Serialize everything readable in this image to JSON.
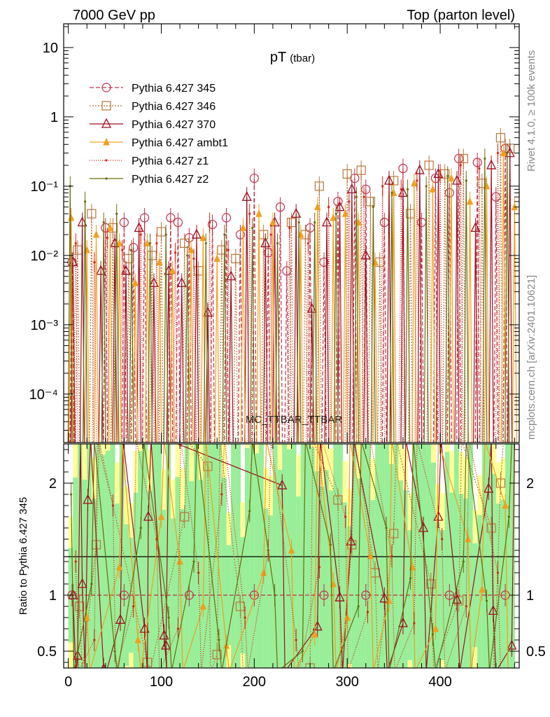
{
  "header": {
    "left": "7000 GeV pp",
    "right": "Top (parton level)"
  },
  "side": {
    "rivet": "Rivet 4.1.0, ≥ 100k events",
    "mcplots": "mcplots.cern.ch [arXiv:2401.10621]"
  },
  "watermark": "MC_TTBAR_TTBAR",
  "chart_data": [
    {
      "type": "line",
      "title": "pT",
      "title_sub": "(tbar)",
      "xlabel": "",
      "ylabel": "",
      "yscale": "log",
      "xlim": [
        -5,
        485
      ],
      "ylim": [
        2e-05,
        22
      ],
      "yticks": [
        {
          "value": 10,
          "label": "10"
        },
        {
          "value": 1,
          "label": "1"
        },
        {
          "value": 0.1,
          "label": "10⁻¹"
        },
        {
          "value": 0.01,
          "label": "10⁻²"
        },
        {
          "value": 0.001,
          "label": "10⁻³"
        },
        {
          "value": 0.0001,
          "label": "10⁻⁴"
        }
      ],
      "legend_position": "top-left",
      "series": [
        {
          "name": "Pythia 6.427 345",
          "color": "#c0304a",
          "marker": "circle",
          "dash": "6,3",
          "x": [
            4,
            40,
            60,
            70,
            82,
            110,
            118,
            130,
            155,
            170,
            185,
            200,
            215,
            228,
            235,
            260,
            275,
            290,
            308,
            320,
            340,
            360,
            380,
            395,
            410,
            420,
            440,
            460,
            470
          ],
          "values": [
            0.008,
            0.025,
            0.03,
            0.013,
            0.035,
            0.035,
            0.03,
            0.018,
            0.028,
            0.035,
            0.02,
            0.13,
            0.011,
            0.05,
            0.006,
            0.025,
            0.008,
            0.06,
            0.13,
            0.09,
            0.03,
            0.18,
            0.03,
            0.13,
            0.08,
            0.25,
            0.22,
            0.07,
            0.35
          ]
        },
        {
          "name": "Pythia 6.427 346",
          "color": "#b8763a",
          "marker": "square",
          "dash": "2,2",
          "x": [
            10,
            25,
            48,
            65,
            90,
            100,
            125,
            140,
            165,
            180,
            210,
            240,
            255,
            270,
            300,
            315,
            325,
            335,
            350,
            368,
            388,
            405,
            425,
            445,
            465,
            475
          ],
          "values": [
            0.012,
            0.04,
            0.025,
            0.009,
            0.01,
            0.022,
            0.015,
            0.006,
            0.012,
            0.009,
            0.02,
            0.03,
            0.02,
            0.1,
            0.15,
            0.17,
            0.06,
            0.008,
            0.12,
            0.04,
            0.2,
            0.15,
            0.25,
            0.11,
            0.5,
            0.35
          ]
        },
        {
          "name": "Pythia 6.427 370",
          "color": "#9b1020",
          "marker": "triangle",
          "dash": "",
          "x": [
            5,
            15,
            35,
            50,
            62,
            76,
            92,
            108,
            122,
            138,
            150,
            175,
            192,
            212,
            222,
            245,
            262,
            278,
            292,
            305,
            320,
            345,
            360,
            378,
            398,
            418,
            438,
            455,
            475
          ],
          "values": [
            0.008,
            0.03,
            0.006,
            0.015,
            0.006,
            0.025,
            0.004,
            0.006,
            0.004,
            0.02,
            0.0015,
            0.005,
            0.07,
            0.015,
            0.03,
            0.04,
            0.0017,
            0.03,
            0.05,
            0.09,
            0.01,
            0.12,
            0.08,
            0.17,
            0.15,
            0.12,
            0.025,
            0.2,
            0.3
          ]
        },
        {
          "name": "Pythia 6.427 ambt1",
          "color": "#f0a020",
          "marker": "triangle-filled",
          "dash": "",
          "x": [
            3,
            20,
            30,
            45,
            55,
            72,
            85,
            98,
            112,
            132,
            145,
            160,
            188,
            205,
            220,
            250,
            268,
            285,
            298,
            312,
            330,
            350,
            372,
            392,
            412,
            432,
            450,
            468,
            480
          ],
          "values": [
            0.035,
            0.012,
            0.02,
            0.025,
            0.015,
            0.004,
            0.015,
            0.008,
            0.006,
            0.012,
            0.018,
            0.009,
            0.025,
            0.04,
            0.03,
            0.02,
            0.05,
            0.035,
            0.04,
            0.03,
            0.008,
            0.08,
            0.11,
            0.09,
            0.13,
            0.06,
            0.1,
            0.3,
            0.05
          ]
        },
        {
          "name": "Pythia 6.427 z1",
          "color": "#d82010",
          "marker": "dot",
          "dash": "1,2",
          "x": [
            8,
            28,
            42,
            58,
            78,
            95,
            115,
            135,
            152,
            172,
            195,
            218,
            238,
            258,
            280,
            302,
            318,
            338,
            358,
            375,
            400,
            422,
            442,
            462
          ],
          "values": [
            0.015,
            0.008,
            0.018,
            0.012,
            0.02,
            0.015,
            0.011,
            0.009,
            0.03,
            0.012,
            0.04,
            0.02,
            0.025,
            0.015,
            0.05,
            0.06,
            0.07,
            0.1,
            0.09,
            0.12,
            0.15,
            0.2,
            0.18,
            0.3
          ]
        },
        {
          "name": "Pythia 6.427 z2",
          "color": "#6b6b10",
          "marker": "dot",
          "dash": "",
          "x": [
            2,
            18,
            38,
            52,
            68,
            88,
            105,
            128,
            148,
            168,
            198,
            225,
            248,
            265,
            288,
            310,
            328,
            348,
            365,
            385,
            408,
            428,
            448,
            472
          ],
          "values": [
            0.1,
            0.06,
            0.03,
            0.04,
            0.012,
            0.015,
            0.02,
            0.01,
            0.015,
            0.02,
            0.025,
            0.015,
            0.03,
            0.03,
            0.04,
            0.07,
            0.05,
            0.08,
            0.09,
            0.1,
            0.14,
            0.12,
            0.25,
            0.3
          ]
        }
      ]
    },
    {
      "type": "line",
      "ylabel": "Ratio to Pythia 6.427 345",
      "xlim": [
        -5,
        485
      ],
      "ylim": [
        0.35,
        2.35
      ],
      "yticks": [
        {
          "value": 2,
          "label": "2"
        },
        {
          "value": 1,
          "label": "1"
        },
        {
          "value": 0.5,
          "label": "0.5"
        }
      ],
      "xticks": [
        {
          "value": 0,
          "label": "0"
        },
        {
          "value": 100,
          "label": "100"
        },
        {
          "value": 200,
          "label": "200"
        },
        {
          "value": 300,
          "label": "300"
        },
        {
          "value": 400,
          "label": "400"
        }
      ],
      "reference_line": 1,
      "band_colors": {
        "inner": "#99ee99",
        "outer": "#ffff99"
      },
      "series": [
        {
          "name": "Pythia 6.427 345",
          "color": "#c0304a",
          "marker": "circle",
          "dash": "6,3",
          "x": [
            4,
            60,
            130,
            200,
            275,
            320,
            410,
            470
          ],
          "values": [
            1.0,
            1.0,
            1.0,
            1.0,
            1.0,
            1.0,
            1.0,
            1.0
          ]
        },
        {
          "name": "Pythia 6.427 346",
          "color": "#b8763a",
          "marker": "square",
          "dash": "2,2",
          "x": [
            12,
            30,
            85,
            125,
            150,
            160,
            185,
            260,
            290,
            305,
            330,
            350,
            390,
            420,
            455,
            465
          ],
          "values": [
            0.9,
            1.45,
            0.4,
            1.7,
            2.15,
            0.47,
            0.9,
            0.35,
            1.85,
            1.45,
            1.2,
            1.55,
            1.1,
            0.95,
            1.6,
            2.0
          ]
        },
        {
          "name": "Pythia 6.427 370",
          "color": "#9b1020",
          "marker": "triangle",
          "dash": "",
          "x": [
            5,
            10,
            15,
            21,
            38,
            56,
            82,
            86,
            103,
            105,
            230,
            268,
            292,
            304,
            340,
            360,
            382,
            398,
            418,
            452,
            457,
            477
          ],
          "values": [
            1.0,
            0.46,
            1.1,
            1.85,
            0.34,
            0.78,
            0.7,
            1.7,
            0.64,
            0.55,
            1.98,
            0.72,
            0.98,
            1.48,
            0.97,
            0.75,
            1.6,
            1.7,
            0.96,
            1.95,
            0.86,
            0.55
          ]
        },
        {
          "name": "Pythia 6.427 ambt1",
          "color": "#f0a020",
          "marker": "triangle-filled",
          "dash": "",
          "x": [
            20,
            55,
            75,
            100,
            120,
            145,
            170,
            210,
            240,
            265,
            285,
            300,
            325,
            345,
            370,
            395,
            430,
            445,
            470
          ],
          "values": [
            0.8,
            1.25,
            0.6,
            1.7,
            1.3,
            0.9,
            0.55,
            1.2,
            1.4,
            0.65,
            1.1,
            0.8,
            1.35,
            0.95,
            1.25,
            0.7,
            1.5,
            1.05,
            1.8
          ]
        },
        {
          "name": "Pythia 6.427 z1",
          "color": "#d82010",
          "marker": "dot",
          "dash": "1,2",
          "x": [
            8,
            28,
            48,
            70,
            95,
            118,
            140,
            165,
            190,
            215,
            245,
            270,
            298,
            322,
            348,
            372,
            402,
            428,
            462
          ],
          "values": [
            1.3,
            0.6,
            1.8,
            0.9,
            1.5,
            0.7,
            1.2,
            1.9,
            0.8,
            1.4,
            0.6,
            1.25,
            1.7,
            0.85,
            1.35,
            0.75,
            1.5,
            0.9,
            1.2
          ]
        },
        {
          "name": "Pythia 6.427 z2",
          "color": "#6b6b10",
          "marker": "dot",
          "dash": "",
          "x": [
            3,
            25,
            50,
            78,
            108,
            135,
            162,
            195,
            222,
            252,
            282,
            312,
            342,
            368,
            392,
            425,
            450,
            474
          ],
          "values": [
            1.9,
            1.1,
            0.5,
            1.6,
            0.8,
            1.3,
            0.6,
            1.75,
            1.0,
            0.5,
            1.45,
            0.9,
            1.6,
            1.15,
            0.65,
            1.3,
            0.95,
            1.7
          ]
        }
      ]
    }
  ]
}
